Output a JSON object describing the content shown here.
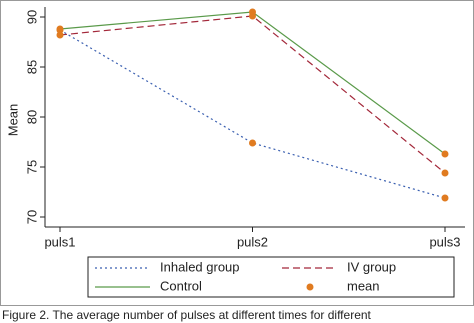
{
  "chart_data": {
    "type": "line",
    "y_label": "Mean",
    "categories": [
      "puls1",
      "puls2",
      "puls3"
    ],
    "series": [
      {
        "name": "Inhaled group",
        "color": "#3a5fb0",
        "dash": "2,3",
        "values": [
          88.7,
          77.4,
          71.9
        ]
      },
      {
        "name": "IV group",
        "color": "#a3283a",
        "dash": "7,4",
        "values": [
          88.2,
          90.1,
          74.4
        ]
      },
      {
        "name": "Control",
        "color": "#5a9a4a",
        "dash": "",
        "values": [
          88.8,
          90.5,
          76.3
        ]
      }
    ],
    "marker_label": "mean",
    "marker_color": "#e07b20",
    "ylim": [
      69,
      91
    ],
    "yticks": [
      70,
      75,
      80,
      85,
      90
    ],
    "caption": "Figure 2. The average number of pulses at different times for different"
  }
}
